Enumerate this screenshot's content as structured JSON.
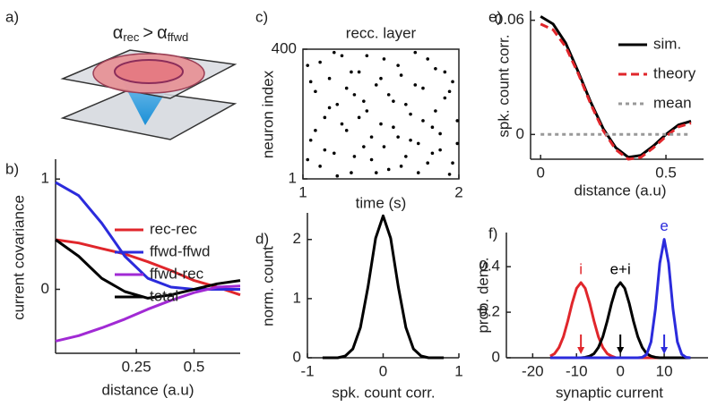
{
  "diagram": {
    "label": "a)",
    "alpha": "α",
    "left_sub": "rec",
    "relation": ">",
    "right_sub": "ffwd"
  },
  "chart_data": [
    {
      "type": "line",
      "panel_label": "b)",
      "xlabel": "distance (a.u)",
      "ylabel": "current covariance",
      "x": [
        -0.1,
        0,
        0.1,
        0.2,
        0.3,
        0.4,
        0.5,
        0.6,
        0.7
      ],
      "xlim": [
        -0.1,
        0.7
      ],
      "ylim": [
        -0.58,
        1.18
      ],
      "xticks": [
        0.25,
        0.5
      ],
      "yticks": [
        0,
        1
      ],
      "legend": "upper right",
      "series": [
        {
          "name": "rec-rec",
          "color": "#e0262b",
          "values": [
            0.45,
            0.42,
            0.37,
            0.32,
            0.25,
            0.17,
            0.08,
            0.02,
            -0.05
          ]
        },
        {
          "name": "ffwd-ffwd",
          "color": "#2b2bdc",
          "values": [
            0.97,
            0.85,
            0.6,
            0.3,
            0.1,
            0.02,
            0.0,
            0.0,
            0.0
          ]
        },
        {
          "name": "ffwd-rec",
          "color": "#a12ad4",
          "values": [
            -0.47,
            -0.42,
            -0.35,
            -0.27,
            -0.18,
            -0.1,
            -0.03,
            0.02,
            0.03
          ]
        },
        {
          "name": "total",
          "color": "#000000",
          "values": [
            0.45,
            0.3,
            0.1,
            -0.02,
            -0.08,
            -0.05,
            0.0,
            0.05,
            0.08
          ]
        }
      ]
    },
    {
      "type": "scatter",
      "panel_label": "c)",
      "title": "recc. layer",
      "xlabel": "time (s)",
      "ylabel": "neuron index",
      "color": "#000000",
      "xlim": [
        1,
        2
      ],
      "ylim": [
        1,
        400
      ],
      "xticks": [
        1,
        2
      ],
      "yticks": [
        1,
        400
      ],
      "x": [
        1.03,
        1.05,
        1.08,
        1.11,
        1.14,
        1.17,
        1.2,
        1.22,
        1.25,
        1.28,
        1.31,
        1.33,
        1.36,
        1.39,
        1.41,
        1.44,
        1.47,
        1.5,
        1.52,
        1.55,
        1.58,
        1.61,
        1.63,
        1.66,
        1.69,
        1.72,
        1.74,
        1.77,
        1.8,
        1.83,
        1.85,
        1.88,
        1.91,
        1.94,
        1.96,
        1.99,
        1.03,
        1.05,
        1.08,
        1.11,
        1.14,
        1.17,
        1.2,
        1.22,
        1.25,
        1.28,
        1.31,
        1.33,
        1.36,
        1.39,
        1.41,
        1.44,
        1.47,
        1.5,
        1.52,
        1.55,
        1.58,
        1.61,
        1.63,
        1.66,
        1.69,
        1.72,
        1.74,
        1.77,
        1.8,
        1.83,
        1.85,
        1.88,
        1.91,
        1.94,
        1.96,
        1.99
      ],
      "y": [
        350,
        120,
        270,
        40,
        190,
        310,
        80,
        230,
        380,
        150,
        20,
        260,
        330,
        100,
        210,
        60,
        290,
        170,
        370,
        30,
        240,
        130,
        320,
        70,
        200,
        390,
        110,
        280,
        50,
        160,
        340,
        90,
        250,
        15,
        300,
        180,
        60,
        300,
        150,
        360,
        90,
        220,
        390,
        10,
        170,
        280,
        330,
        70,
        190,
        240,
        380,
        130,
        20,
        310,
        100,
        260,
        160,
        350,
        40,
        230,
        120,
        290,
        20,
        180,
        370,
        80,
        210,
        140,
        330,
        270,
        50,
        110
      ]
    },
    {
      "type": "line",
      "panel_label": "d)",
      "xlabel": "spk. count corr.",
      "ylabel": "norm. count",
      "x": [
        -0.8,
        -0.7,
        -0.6,
        -0.5,
        -0.4,
        -0.3,
        -0.2,
        -0.1,
        0,
        0.1,
        0.2,
        0.3,
        0.4,
        0.5,
        0.6,
        0.7,
        0.8
      ],
      "xlim": [
        -1,
        1
      ],
      "ylim": [
        0,
        2.45
      ],
      "xticks": [
        -1,
        0,
        1
      ],
      "yticks": [
        0,
        1,
        2
      ],
      "series": [
        {
          "color": "#000000",
          "values": [
            0,
            0,
            0,
            0.03,
            0.15,
            0.51,
            1.2,
            2.02,
            2.4,
            2.02,
            1.2,
            0.51,
            0.15,
            0.03,
            0,
            0,
            0
          ]
        }
      ]
    },
    {
      "type": "line",
      "panel_label": "e)",
      "xlabel": "distance (a.u)",
      "ylabel": "spk. count corr.",
      "x": [
        0,
        0.05,
        0.1,
        0.15,
        0.2,
        0.25,
        0.3,
        0.35,
        0.4,
        0.45,
        0.5,
        0.55,
        0.6
      ],
      "xlim": [
        -0.04,
        0.65
      ],
      "ylim": [
        -0.013,
        0.065
      ],
      "xticks": [
        0,
        0.5
      ],
      "yticks": [
        0,
        0.06
      ],
      "legend": "upper right",
      "series": [
        {
          "name": "sim.",
          "color": "#000000",
          "dash": "solid",
          "values": [
            0.062,
            0.058,
            0.048,
            0.033,
            0.017,
            0.003,
            -0.007,
            -0.012,
            -0.011,
            -0.006,
            0,
            0.005,
            0.007
          ]
        },
        {
          "name": "theory",
          "color": "#e0262b",
          "dash": "dashed",
          "values": [
            0.058,
            0.055,
            0.046,
            0.032,
            0.016,
            0.002,
            -0.008,
            -0.013,
            -0.012,
            -0.007,
            -0.001,
            0.004,
            0.006
          ]
        },
        {
          "name": "mean",
          "color": "#999999",
          "dash": "dotted",
          "values": [
            0,
            0,
            0,
            0,
            0,
            0,
            0,
            0,
            0,
            0,
            0,
            0,
            0
          ]
        }
      ]
    },
    {
      "type": "line",
      "panel_label": "f)",
      "xlabel": "synaptic current",
      "ylabel": "prob. dens.",
      "x": [
        -16,
        -15,
        -14,
        -13,
        -12,
        -11,
        -10,
        -9,
        -8,
        -7,
        -6,
        -5,
        -4,
        -3,
        -2,
        -1,
        0,
        1,
        2,
        3,
        4,
        5,
        6,
        7,
        8,
        9,
        10,
        11,
        12,
        13,
        14,
        15,
        16
      ],
      "xlim": [
        -26,
        20
      ],
      "ylim": [
        0,
        0.55
      ],
      "xticks": [
        -20,
        -10,
        0,
        10
      ],
      "yticks": [
        0,
        0.2,
        0.4
      ],
      "legend": "inline",
      "series": [
        {
          "name": "i",
          "color": "#e0262b",
          "values": [
            0.007,
            0.018,
            0.045,
            0.092,
            0.161,
            0.24,
            0.305,
            0.33,
            0.305,
            0.24,
            0.161,
            0.092,
            0.045,
            0.018,
            0.007,
            0,
            0,
            0,
            0,
            0,
            0,
            0,
            0,
            0,
            0,
            0,
            0,
            0,
            0,
            0,
            0,
            0,
            0
          ]
        },
        {
          "name": "e+i",
          "color": "#000000",
          "values": [
            0,
            0,
            0,
            0,
            0,
            0,
            0,
            0,
            0.002,
            0.007,
            0.018,
            0.045,
            0.092,
            0.161,
            0.24,
            0.305,
            0.33,
            0.305,
            0.24,
            0.161,
            0.092,
            0.045,
            0.018,
            0.007,
            0.002,
            0,
            0,
            0,
            0,
            0,
            0,
            0,
            0
          ]
        },
        {
          "name": "e",
          "color": "#2b2bdc",
          "values": [
            0,
            0,
            0,
            0,
            0,
            0,
            0,
            0,
            0,
            0,
            0,
            0,
            0,
            0,
            0,
            0,
            0,
            0,
            0,
            0,
            0,
            0.002,
            0.015,
            0.07,
            0.214,
            0.416,
            0.52,
            0.416,
            0.214,
            0.07,
            0.015,
            0.002,
            0
          ]
        }
      ]
    }
  ]
}
